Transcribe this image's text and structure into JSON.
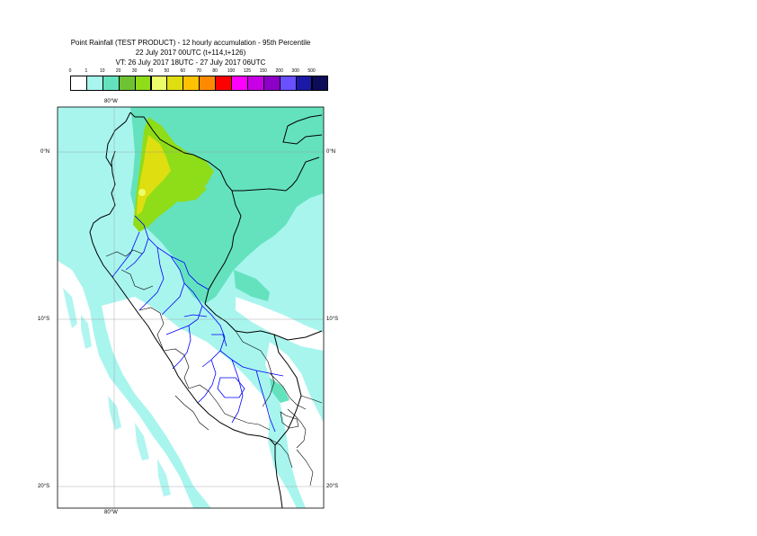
{
  "title": {
    "line1": "Point Rainfall (TEST PRODUCT) - 12 hourly accumulation - 95th Percentile",
    "line2": "22 July 2017 00UTC (t+114,t+126)",
    "line3": "VT: 26 July 2017 18UTC - 27 July 2017 06UTC"
  },
  "legend": {
    "thresholds": [
      "0",
      "1",
      "10",
      "20",
      "30",
      "40",
      "50",
      "60",
      "70",
      "80",
      "100",
      "125",
      "150",
      "200",
      "300",
      "500"
    ],
    "colors": [
      "#ffffff",
      "#a8f5ee",
      "#64e2be",
      "#6fc232",
      "#8fdc18",
      "#ecff6a",
      "#dede10",
      "#ffc200",
      "#ff8a00",
      "#ff0000",
      "#ff00ff",
      "#c800e6",
      "#8c00c8",
      "#6a50ff",
      "#1a1aa6",
      "#0c0c5a"
    ]
  },
  "map": {
    "lon_top": "80°W",
    "lon_bottom": "80°W",
    "lat_left": [
      "0°N",
      "10°S",
      "20°S"
    ],
    "lat_right": [
      "0°N",
      "10°S",
      "20°S"
    ],
    "colors": {
      "light": "#a8f5ee",
      "medium": "#64e2be",
      "green": "#8fdc18",
      "yellow_green": "#dede10",
      "yellow": "#ecff6a",
      "coast": "#000000",
      "border": "#0000ff"
    }
  }
}
